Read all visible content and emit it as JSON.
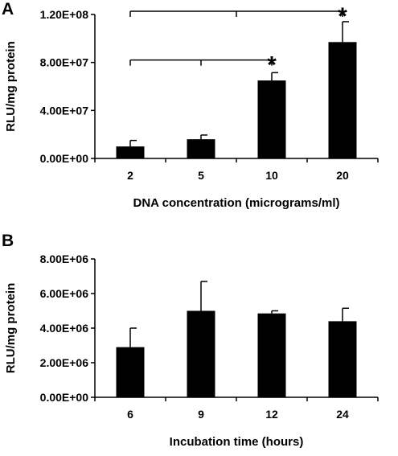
{
  "chart_data": [
    {
      "panel": "A",
      "type": "bar",
      "categories": [
        "2",
        "5",
        "10",
        "20"
      ],
      "values": [
        10000000,
        16000000,
        65000000,
        97000000
      ],
      "errors": [
        5000000,
        3500000,
        6500000,
        17000000
      ],
      "ylim": [
        0,
        120000000
      ],
      "yticks": [
        0,
        40000000,
        80000000,
        120000000
      ],
      "ytick_labels": [
        "0.00E+00",
        "4.00E+07",
        "8.00E+07",
        "1.20E+08"
      ],
      "xlabel": "DNA concentration (micrograms/ml)",
      "ylabel": "RLU/mg protein",
      "significance": [
        {
          "from": 0,
          "to": 2,
          "marker": "*"
        },
        {
          "from": 0,
          "to": 3,
          "marker": "*"
        }
      ],
      "bar_color": "#000000"
    },
    {
      "panel": "B",
      "type": "bar",
      "categories": [
        "6",
        "9",
        "12",
        "24"
      ],
      "values": [
        2900000,
        5000000,
        4850000,
        4400000
      ],
      "errors": [
        1100000,
        1700000,
        150000,
        750000
      ],
      "ylim": [
        0,
        8000000
      ],
      "yticks": [
        0,
        2000000,
        4000000,
        6000000,
        8000000
      ],
      "ytick_labels": [
        "0.00E+00",
        "2.00E+06",
        "4.00E+06",
        "6.00E+06",
        "8.00E+06"
      ],
      "xlabel": "Incubation time (hours)",
      "ylabel": "RLU/mg protein",
      "bar_color": "#000000"
    }
  ]
}
